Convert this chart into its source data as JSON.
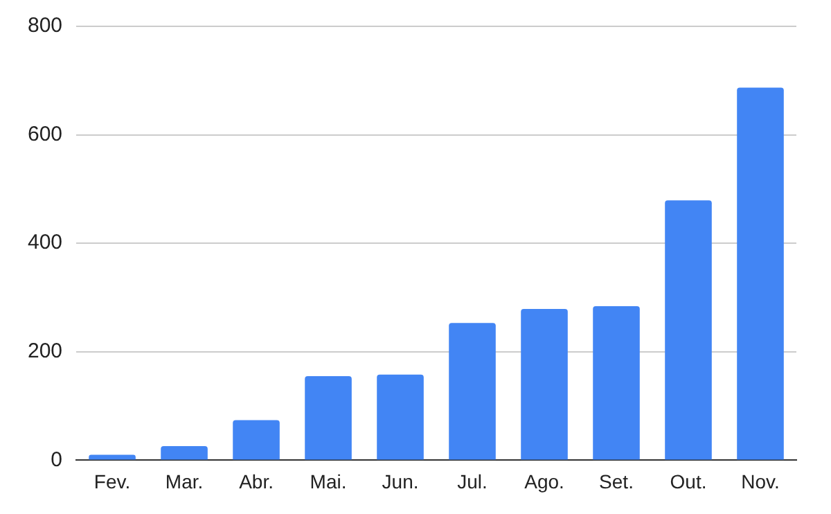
{
  "chart_data": {
    "type": "bar",
    "categories": [
      "Fev.",
      "Mar.",
      "Abr.",
      "Mai.",
      "Jun.",
      "Jul.",
      "Ago.",
      "Set.",
      "Out.",
      "Nov."
    ],
    "values": [
      10,
      26,
      74,
      155,
      158,
      253,
      279,
      284,
      479,
      687
    ],
    "color": "#4285f4",
    "ylim": [
      0,
      800
    ],
    "yticks": [
      0,
      200,
      400,
      600,
      800
    ],
    "grid": "y",
    "legend": false
  }
}
